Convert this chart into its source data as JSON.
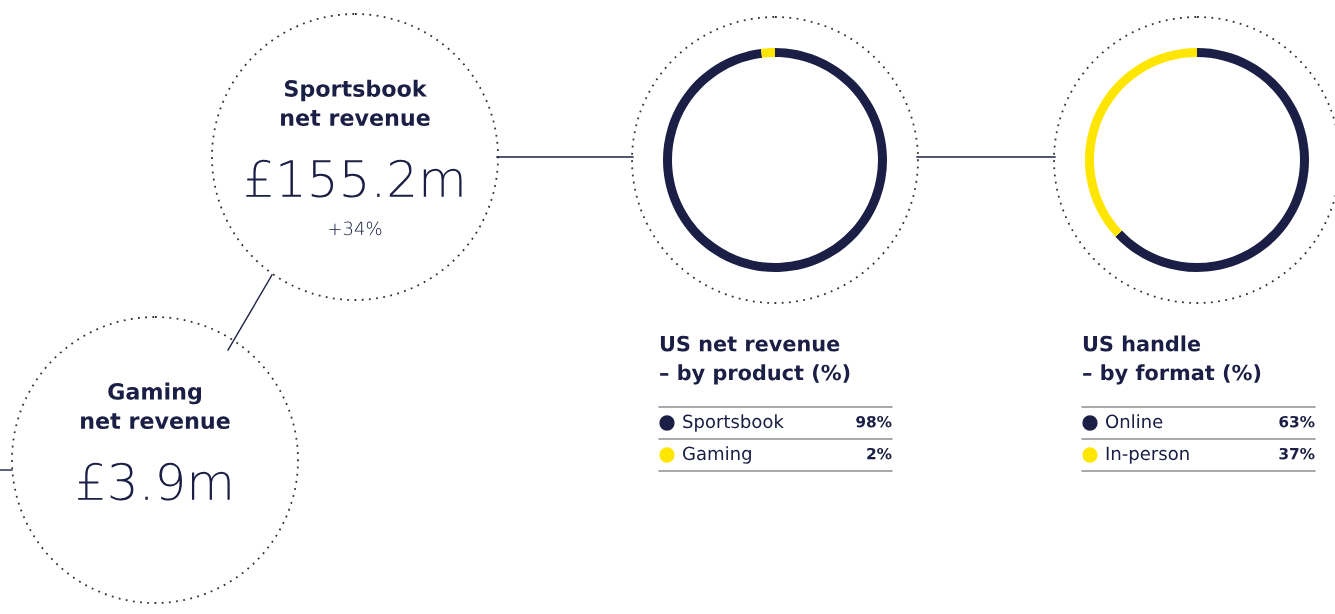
{
  "chart_data": [
    {
      "type": "other",
      "title": "Sportsbook\nnet revenue",
      "annotations": [
        "£155.2m",
        "+34%"
      ]
    },
    {
      "type": "other",
      "title": "Gaming\nnet revenue",
      "annotations": [
        "£3.9m"
      ]
    },
    {
      "type": "donut",
      "title": "US net revenue\n– by product (%)",
      "categories": [
        "Sportsbook",
        "Gaming"
      ],
      "values": [
        98,
        2
      ],
      "colors": [
        "#1b1f45",
        "#ffe600"
      ],
      "value_labels": [
        "98%",
        "2%"
      ],
      "legend": "bottom"
    },
    {
      "type": "donut",
      "title": "US handle\n– by format (%)",
      "categories": [
        "Online",
        "In-person"
      ],
      "values": [
        63,
        37
      ],
      "colors": [
        "#1b1f45",
        "#ffe600"
      ],
      "value_labels": [
        "63%",
        "37%"
      ],
      "legend": "bottom"
    }
  ]
}
